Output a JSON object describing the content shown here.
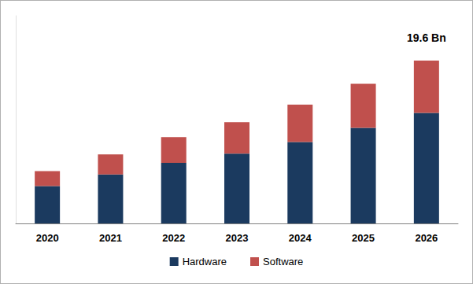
{
  "chart_data": {
    "type": "bar",
    "categories": [
      "2020",
      "2021",
      "2022",
      "2023",
      "2024",
      "2025",
      "2026"
    ],
    "series": [
      {
        "name": "Hardware",
        "color": "#1b3a5f",
        "values": [
          4.5,
          5.9,
          7.3,
          8.4,
          9.8,
          11.5,
          13.3
        ]
      },
      {
        "name": "Software",
        "color": "#c0504d",
        "values": [
          1.8,
          2.4,
          3.1,
          3.8,
          4.5,
          5.3,
          6.3
        ]
      }
    ],
    "stacked": true,
    "ylim": [
      0,
      25
    ],
    "grid": false,
    "tick_labels": "x",
    "legend": "bottom",
    "annotations": [
      {
        "text": "19.6 Bn",
        "x": "2026",
        "y": 19.6
      }
    ]
  }
}
